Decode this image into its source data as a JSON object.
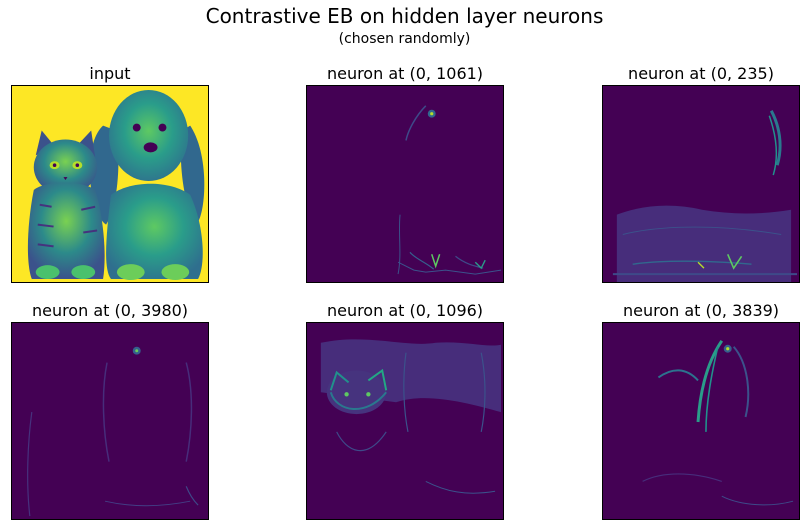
{
  "figure": {
    "title": "Contrastive EB on hidden layer neurons",
    "subtitle": "(chosen randomly)"
  },
  "panels": [
    {
      "title": "input"
    },
    {
      "title": "neuron at (0, 1061)"
    },
    {
      "title": "neuron at (0, 235)"
    },
    {
      "title": "neuron at (0, 3980)"
    },
    {
      "title": "neuron at (0, 1096)"
    },
    {
      "title": "neuron at (0, 3839)"
    }
  ],
  "colors": {
    "viridis_low": "#440154",
    "viridis_mid": "#21918c",
    "viridis_high": "#fde725",
    "viridis_green": "#5ec962"
  }
}
